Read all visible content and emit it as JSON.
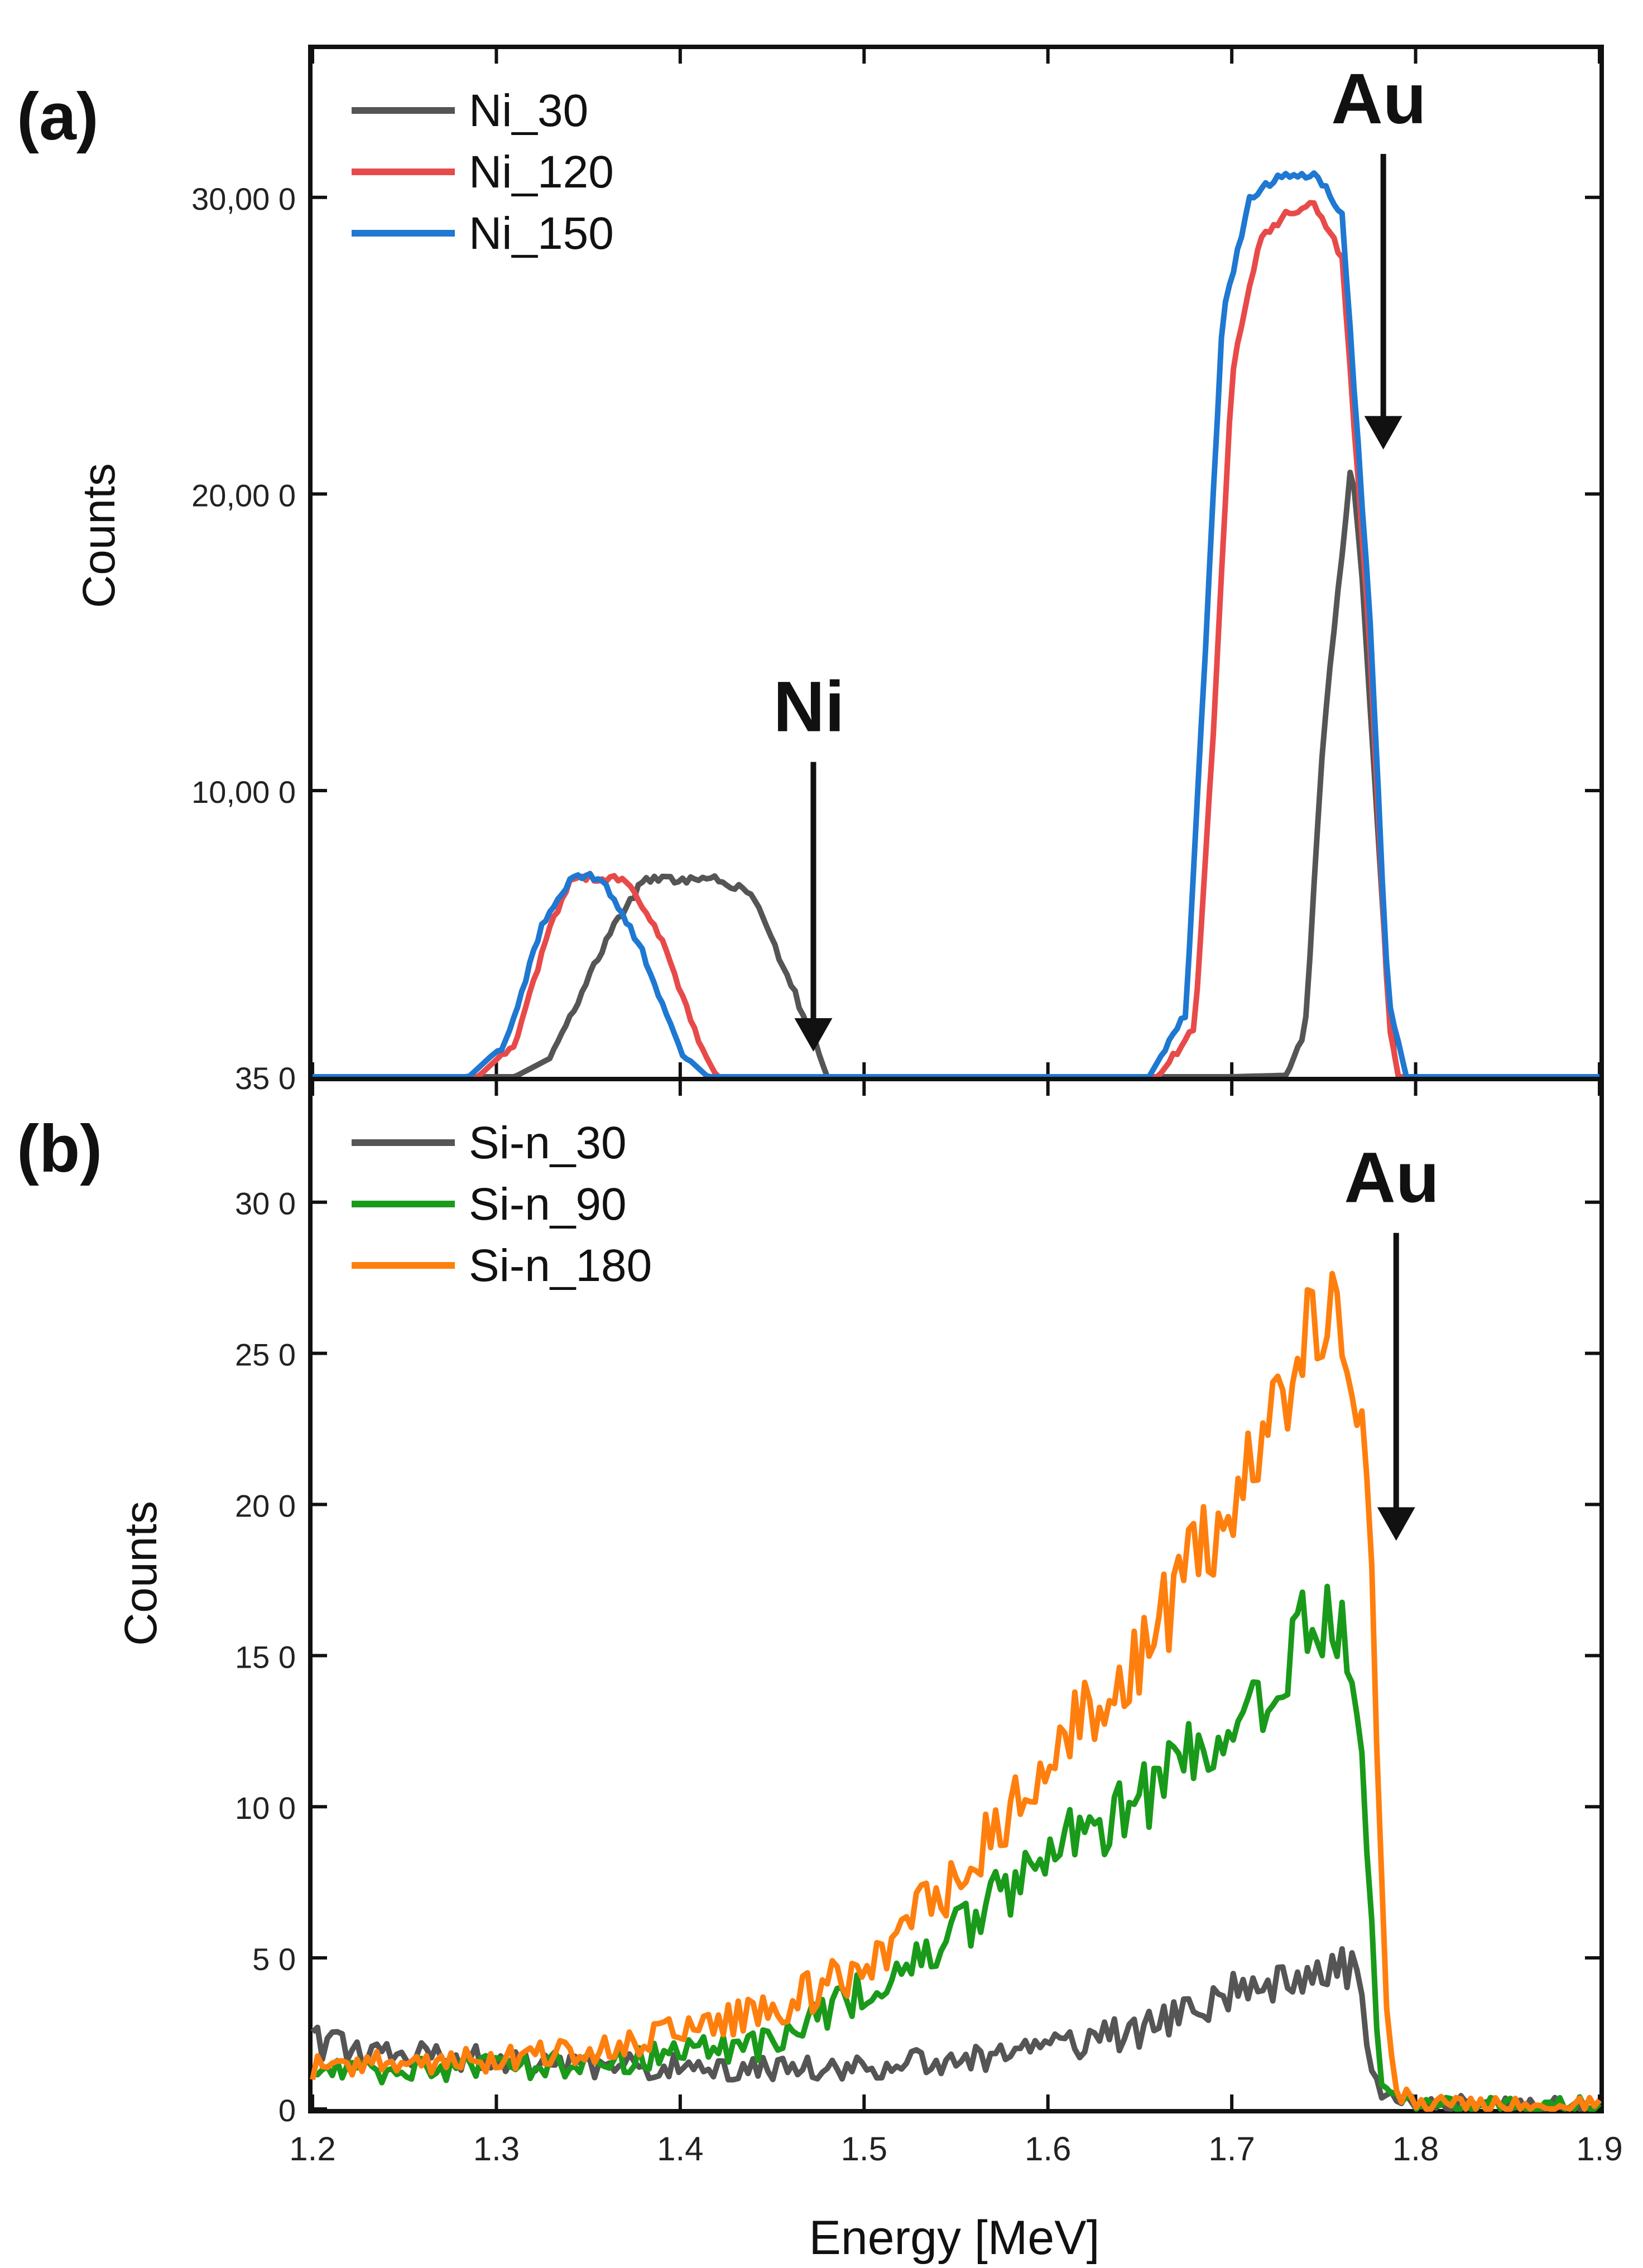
{
  "chart_data": [
    {
      "panel": "(a)",
      "type": "line",
      "ylabel": "Counts",
      "xlim": [
        1.2,
        1.9
      ],
      "ylim": [
        350,
        35000
      ],
      "yticks": [
        350,
        10000,
        20000,
        30000
      ],
      "ytick_labels": [
        "35 0",
        "10,00 0",
        "20,00 0",
        "30,00 0"
      ],
      "legend": "top-left",
      "series": [
        {
          "name": "Ni_30",
          "color": "#555555",
          "x": [
            1.2,
            1.31,
            1.33,
            1.36,
            1.38,
            1.42,
            1.44,
            1.47,
            1.48,
            1.7,
            1.73,
            1.74,
            1.75,
            1.765,
            1.77,
            1.785,
            1.79,
            1.9
          ],
          "y": [
            350,
            350,
            1000,
            5000,
            7000,
            7000,
            6500,
            2000,
            350,
            350,
            400,
            2000,
            12000,
            21000,
            18000,
            3000,
            350,
            350
          ]
        },
        {
          "name": "Ni_120",
          "color": "#e84a4a",
          "x": [
            1.2,
            1.29,
            1.31,
            1.33,
            1.34,
            1.35,
            1.37,
            1.39,
            1.41,
            1.42,
            1.66,
            1.68,
            1.69,
            1.7,
            1.715,
            1.73,
            1.745,
            1.76,
            1.775,
            1.785,
            1.79,
            1.9
          ],
          "y": [
            350,
            350,
            1500,
            5500,
            7000,
            7100,
            7000,
            5000,
            1500,
            350,
            350,
            2000,
            12000,
            24000,
            28500,
            29500,
            29800,
            28000,
            15000,
            2500,
            350,
            350
          ]
        },
        {
          "name": "Ni_150",
          "color": "#1f78d1",
          "x": [
            1.2,
            1.285,
            1.305,
            1.325,
            1.34,
            1.35,
            1.36,
            1.38,
            1.4,
            1.415,
            1.655,
            1.675,
            1.685,
            1.695,
            1.71,
            1.725,
            1.745,
            1.76,
            1.775,
            1.785,
            1.795,
            1.9
          ],
          "y": [
            350,
            350,
            1500,
            5500,
            7000,
            7200,
            6800,
            4500,
            1200,
            350,
            350,
            2500,
            14000,
            26000,
            30000,
            30700,
            30800,
            29500,
            16000,
            3000,
            350,
            350
          ]
        }
      ],
      "annotations": [
        {
          "text": "Ni",
          "x": 1.47,
          "y": 12000,
          "arrow_to_y": 1200
        },
        {
          "text": "Au",
          "x": 1.78,
          "y": 32500,
          "arrow_to_y": 21500
        }
      ]
    },
    {
      "panel": "(b)",
      "type": "line",
      "ylabel": "Counts",
      "xlabel": "Energy [MeV]",
      "xlim": [
        1.2,
        1.9
      ],
      "xticks": [
        1.2,
        1.3,
        1.4,
        1.5,
        1.6,
        1.7,
        1.8,
        1.9
      ],
      "xtick_labels": [
        "1.2",
        "1.3",
        "1.4",
        "1.5",
        "1.6",
        "1.7",
        "1.8",
        "1.9"
      ],
      "ylim": [
        0,
        340
      ],
      "yticks": [
        0,
        50,
        100,
        150,
        200,
        250,
        300
      ],
      "ytick_labels": [
        "0",
        "5 0",
        "10 0",
        "15 0",
        "20 0",
        "25 0",
        "30 0"
      ],
      "legend": "top-left",
      "series": [
        {
          "name": "Si-n_30",
          "color": "#555555",
          "x": [
            1.2,
            1.25,
            1.3,
            1.35,
            1.4,
            1.45,
            1.5,
            1.55,
            1.6,
            1.65,
            1.7,
            1.75,
            1.765,
            1.775,
            1.78,
            1.8,
            1.9
          ],
          "y": [
            22,
            18,
            16,
            14,
            14,
            13,
            14,
            16,
            20,
            26,
            38,
            46,
            48,
            20,
            5,
            2,
            1
          ]
        },
        {
          "name": "Si-n_90",
          "color": "#1a9a1a",
          "x": [
            1.2,
            1.25,
            1.3,
            1.35,
            1.4,
            1.45,
            1.5,
            1.55,
            1.6,
            1.65,
            1.7,
            1.72,
            1.74,
            1.76,
            1.77,
            1.78,
            1.79,
            1.8,
            1.9
          ],
          "y": [
            12,
            13,
            14,
            15,
            18,
            22,
            40,
            58,
            84,
            102,
            128,
            140,
            160,
            165,
            130,
            10,
            3,
            1,
            1
          ]
        },
        {
          "name": "Si-n_180",
          "color": "#ff7f0e",
          "x": [
            1.2,
            1.25,
            1.3,
            1.35,
            1.4,
            1.45,
            1.5,
            1.55,
            1.6,
            1.65,
            1.7,
            1.72,
            1.74,
            1.755,
            1.765,
            1.775,
            1.785,
            1.79,
            1.8,
            1.85,
            1.9
          ],
          "y": [
            14,
            15,
            17,
            20,
            26,
            32,
            48,
            75,
            118,
            150,
            200,
            222,
            258,
            268,
            250,
            200,
            20,
            5,
            2,
            1,
            1
          ]
        }
      ],
      "annotations": [
        {
          "text": "Au",
          "x": 1.787,
          "y": 300,
          "arrow_to_y": 188
        }
      ]
    }
  ]
}
